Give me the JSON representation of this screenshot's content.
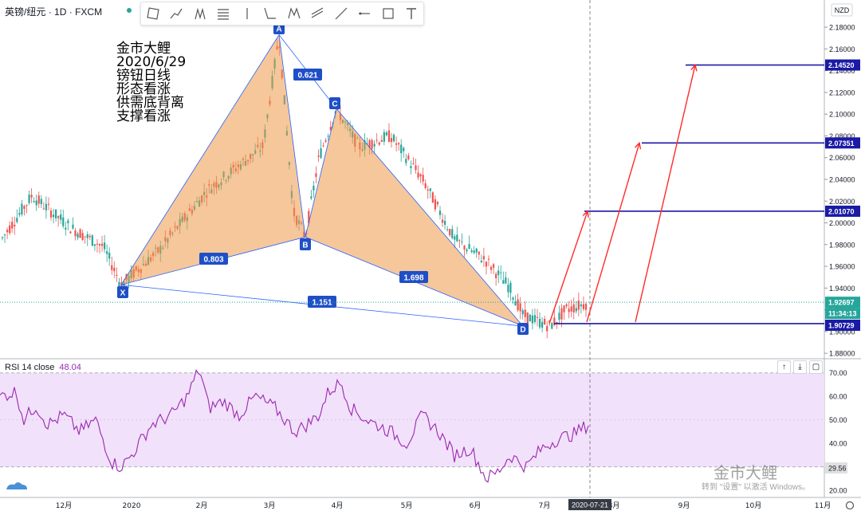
{
  "header": {
    "symbol": "英镑/纽元",
    "timeframe": "1D",
    "exchange": "FXCM",
    "separator": "·"
  },
  "currency_badge": "NZD",
  "annotation": [
    "金市大鲤",
    "2020/6/29",
    "镑钮日线",
    "形态看涨",
    "供需底背离",
    "支撑看涨"
  ],
  "toolbar": [
    "trend-line-icon",
    "path-icon",
    "pitchfork-icon",
    "fib-icon",
    "vertical-line-icon",
    "xabcd-icon",
    "pattern-icon",
    "channel-icon",
    "ray-icon",
    "horizontal-line-icon",
    "rectangle-icon",
    "text-icon"
  ],
  "rsi": {
    "title": "RSI 14 close",
    "value": "48.04",
    "lower_value": "29.56",
    "color": "#9c27b0"
  },
  "watermark": "金市大鲤",
  "watermark_sub": "转到 \"设置\" 以激活 Windows。",
  "price_tags": {
    "current": "1.92697",
    "countdown": "11:34:13",
    "support": "1.90729",
    "t1": "2.01070",
    "t2": "2.07351",
    "t3": "2.14520"
  },
  "date_badge": "2020-07-21",
  "chart_data": {
    "type": "candlestick",
    "title": "英镑/纽元 · 1D · FXCM",
    "ylim": [
      1.875,
      2.205
    ],
    "y_ticks": [
      "2.18000",
      "2.16000",
      "2.14000",
      "2.12000",
      "2.10000",
      "2.08000",
      "2.06000",
      "2.04000",
      "2.02000",
      "2.00000",
      "1.98000",
      "1.96000",
      "1.94000",
      "1.92000",
      "1.90000",
      "1.88000"
    ],
    "x_labels": [
      "12月",
      "2020",
      "2月",
      "3月",
      "4月",
      "5月",
      "6月",
      "7月",
      "8月",
      "9月",
      "10月",
      "11月"
    ],
    "harmonic_pattern": {
      "points": [
        {
          "label": "X",
          "price": 1.943
        },
        {
          "label": "A",
          "price": 2.173
        },
        {
          "label": "B",
          "price": 1.987
        },
        {
          "label": "C",
          "price": 2.105
        },
        {
          "label": "D",
          "price": 1.905
        }
      ],
      "ratios": [
        {
          "label": "0.621"
        },
        {
          "label": "0.803"
        },
        {
          "label": "1.698"
        },
        {
          "label": "1.151"
        }
      ]
    },
    "levels": [
      {
        "name": "support",
        "value": 1.90729
      },
      {
        "name": "target-1",
        "value": 2.0107
      },
      {
        "name": "target-2",
        "value": 2.07351
      },
      {
        "name": "target-3",
        "value": 2.1452
      }
    ],
    "current_price": 1.92697,
    "rsi": {
      "period": 14,
      "last": 48.04,
      "lower_band": 29.56,
      "ylim": [
        17,
        76
      ],
      "y_ticks": [
        "70.00",
        "60.00",
        "50.00",
        "40.00",
        "30.00",
        "20.00"
      ]
    }
  }
}
